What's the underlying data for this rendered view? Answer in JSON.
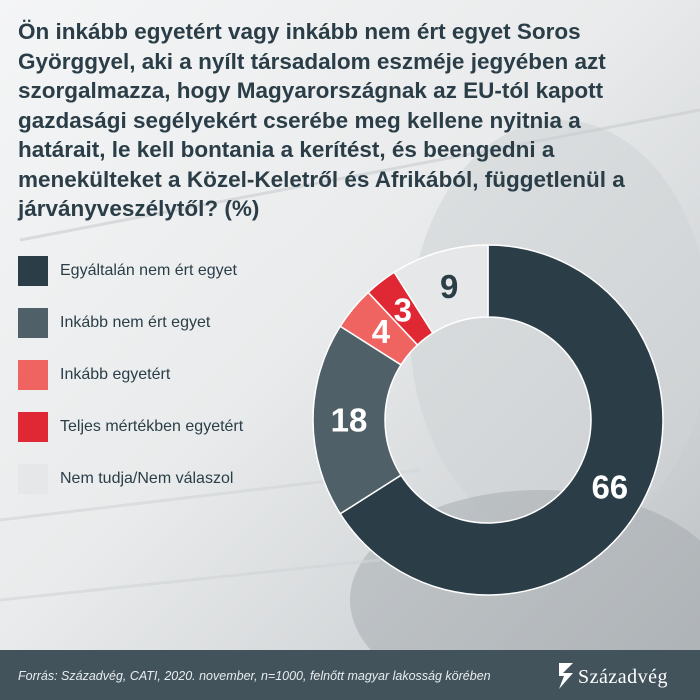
{
  "title": "Ön inkább egyetért vagy inkább nem ért egyet Soros Györggyel, aki a nyílt társadalom eszméje jegyében azt szorgalmazza, hogy Magyarországnak az EU-tól kapott gazdasági segélyekért cserébe meg kellene nyitnia a határait, le kell bontania a kerítést, és beengedni a menekülteket a Közel-Keletről és Afrikából, függetlenül a járványveszélytől? (%)",
  "chart_data": {
    "type": "pie",
    "title": "Ön inkább egyetért vagy inkább nem ért egyet Soros Györggyel, aki a nyílt társadalom eszméje jegyében azt szorgalmazza, hogy Magyarországnak az EU-tól kapott gazdasági segélyekért cserébe meg kellene nyitnia a határait, le kell bontania a kerítést, és beengedni a menekülteket a Közel-Keletről és Afrikából, függetlenül a járványveszélytől? (%)",
    "legend_position": "left",
    "categories": [
      "Egyáltalán nem ért egyet",
      "Inkább nem ért egyet",
      "Inkább egyetért",
      "Teljes mértékben egyetért",
      "Nem tudja/Nem válaszol"
    ],
    "values": [
      66,
      18,
      4,
      3,
      9
    ],
    "colors": [
      "#2b3d47",
      "#4f6068",
      "#ef6461",
      "#e02834",
      "#e6e7e8"
    ],
    "label_colors": [
      "#ffffff",
      "#ffffff",
      "#ffffff",
      "#ffffff",
      "#2b3e48"
    ]
  },
  "footer": {
    "source": "Forrás: Századvég, CATI, 2020. november, n=1000, felnőtt magyar lakosság körében",
    "logo": "Századvég",
    "logo_icon": "szazadveg-logo-icon"
  }
}
